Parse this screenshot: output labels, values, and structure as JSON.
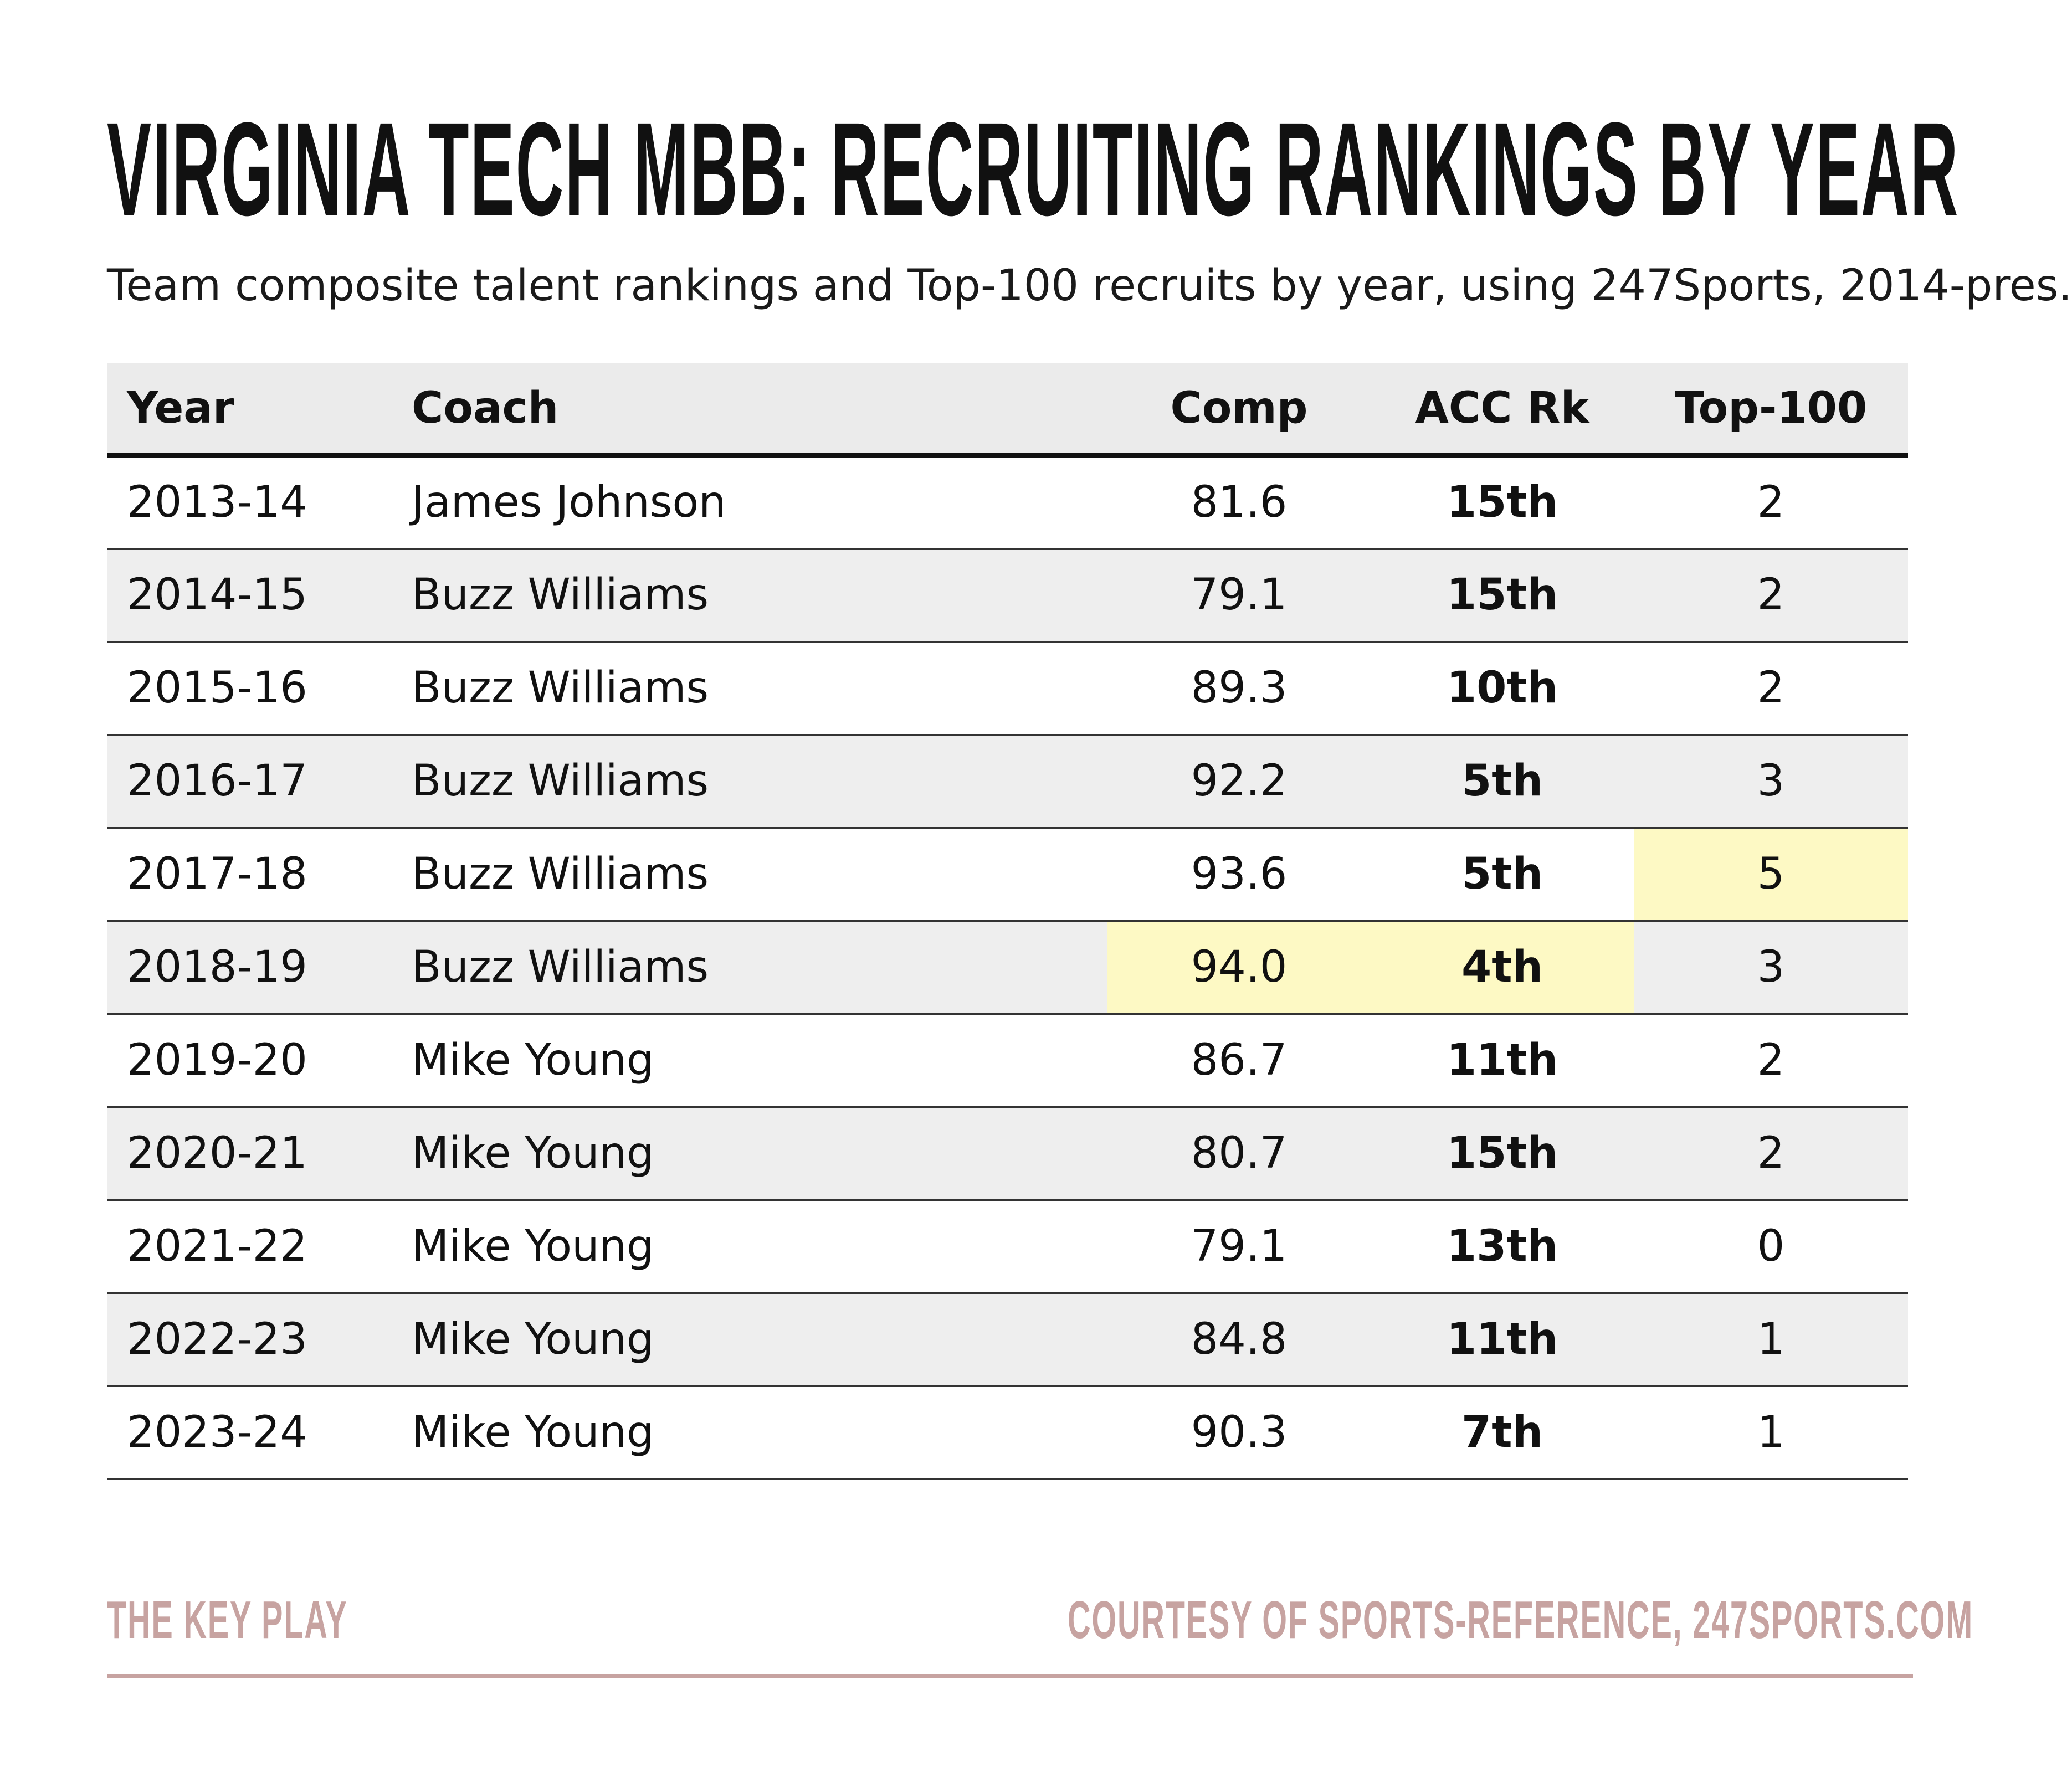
{
  "title": "VIRGINIA TECH MBB: RECRUITING RANKINGS BY YEAR",
  "subtitle": "Team composite talent rankings and Top-100 recruits by year, using 247Sports, 2014-pres.",
  "chart_data": {
    "type": "table",
    "columns": [
      "Year",
      "Coach",
      "Comp",
      "ACC Rk",
      "Top-100"
    ],
    "rows": [
      {
        "year": "2013-14",
        "coach": "James Johnson",
        "comp": "81.6",
        "acc_rk": "15th",
        "top100": "2"
      },
      {
        "year": "2014-15",
        "coach": "Buzz Williams",
        "comp": "79.1",
        "acc_rk": "15th",
        "top100": "2"
      },
      {
        "year": "2015-16",
        "coach": "Buzz Williams",
        "comp": "89.3",
        "acc_rk": "10th",
        "top100": "2"
      },
      {
        "year": "2016-17",
        "coach": "Buzz Williams",
        "comp": "92.2",
        "acc_rk": "5th",
        "top100": "3"
      },
      {
        "year": "2017-18",
        "coach": "Buzz Williams",
        "comp": "93.6",
        "acc_rk": "5th",
        "top100": "5"
      },
      {
        "year": "2018-19",
        "coach": "Buzz Williams",
        "comp": "94.0",
        "acc_rk": "4th",
        "top100": "3"
      },
      {
        "year": "2019-20",
        "coach": "Mike Young",
        "comp": "86.7",
        "acc_rk": "11th",
        "top100": "2"
      },
      {
        "year": "2020-21",
        "coach": "Mike Young",
        "comp": "80.7",
        "acc_rk": "15th",
        "top100": "2"
      },
      {
        "year": "2021-22",
        "coach": "Mike Young",
        "comp": "79.1",
        "acc_rk": "13th",
        "top100": "0"
      },
      {
        "year": "2022-23",
        "coach": "Mike Young",
        "comp": "84.8",
        "acc_rk": "11th",
        "top100": "1"
      },
      {
        "year": "2023-24",
        "coach": "Mike Young",
        "comp": "90.3",
        "acc_rk": "7th",
        "top100": "1"
      }
    ],
    "highlighted_cells": [
      {
        "year": "2017-18",
        "column": "Top-100"
      },
      {
        "year": "2018-19",
        "column": "Comp"
      },
      {
        "year": "2018-19",
        "column": "ACC Rk"
      }
    ],
    "highlight_color": "#fdf9c4"
  },
  "footer": {
    "left": "THE KEY PLAY",
    "right": "COURTESY OF SPORTS-REFERENCE, 247SPORTS.COM"
  },
  "colors": {
    "footer": "#c7a3a1",
    "header_bg": "#ebebeb",
    "stripe_bg": "#eeeeee"
  }
}
